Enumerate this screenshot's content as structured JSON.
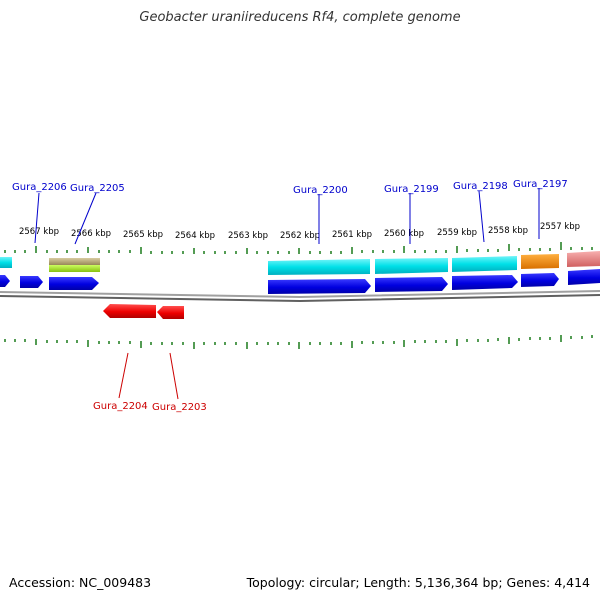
{
  "title": "Geobacter uraniireducens Rf4, complete genome",
  "accession": "Accession: NC_009483",
  "summary": "Topology: circular; Length: 5,136,364 bp; Genes: 4,414",
  "colors": {
    "backbone": "#808080",
    "tick": "#1a7a1a",
    "forward_label": "#0000cc",
    "reverse_label": "#cc0000"
  },
  "scale_labels": [
    "2567 kbp",
    "2566 kbp",
    "2565 kbp",
    "2564 kbp",
    "2563 kbp",
    "2562 kbp",
    "2561 kbp",
    "2560 kbp",
    "2559 kbp",
    "2558 kbp",
    "2557 kbp"
  ],
  "gene_labels": {
    "forward": [
      "Gura_2206",
      "Gura_2205",
      "Gura_2200",
      "Gura_2199",
      "Gura_2198",
      "Gura_2197"
    ],
    "reverse": [
      "Gura_2204",
      "Gura_2203"
    ]
  },
  "feature_colors": {
    "cds_forward": "#0000e6",
    "cds_reverse": "#ee0000",
    "cog_cyan": "#00e0e8",
    "cog_olive": "#b8a878",
    "cog_green": "#a8e020",
    "cog_orange": "#f08800",
    "cog_pink": "#e88888"
  }
}
